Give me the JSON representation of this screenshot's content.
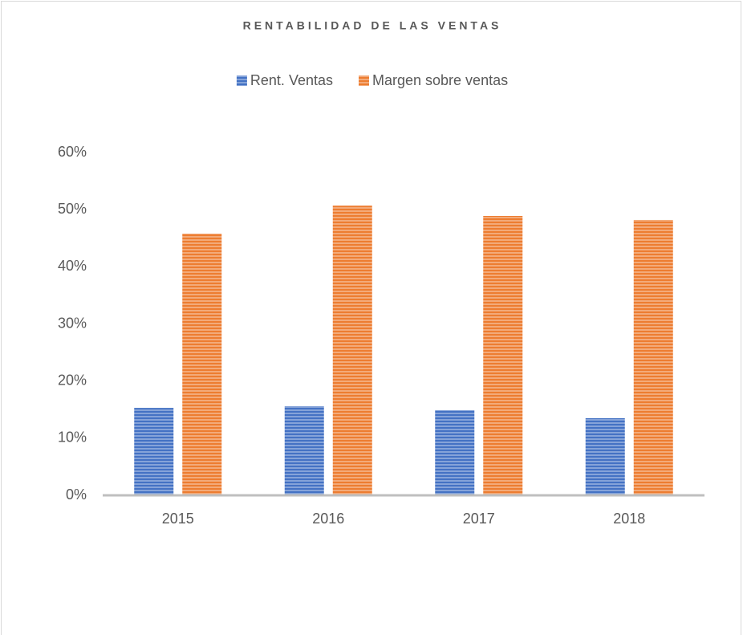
{
  "chart_data": {
    "type": "bar",
    "title": "RENTABILIDAD DE LAS VENTAS",
    "categories": [
      "2015",
      "2016",
      "2017",
      "2018"
    ],
    "series": [
      {
        "name": "Rent. Ventas",
        "color": "#4472c4",
        "values": [
          15.3,
          15.6,
          14.9,
          13.5
        ]
      },
      {
        "name": "Margen sobre ventas",
        "color": "#ed7d31",
        "values": [
          45.8,
          50.7,
          48.9,
          48.2
        ]
      }
    ],
    "ylim": [
      0,
      60
    ],
    "yticks": [
      {
        "value": 0,
        "label": "0%"
      },
      {
        "value": 10,
        "label": "10%"
      },
      {
        "value": 20,
        "label": "20%"
      },
      {
        "value": 30,
        "label": "30%"
      },
      {
        "value": 40,
        "label": "40%"
      },
      {
        "value": 50,
        "label": "50%"
      },
      {
        "value": 60,
        "label": "60%"
      }
    ],
    "grid": false,
    "legend": "top"
  }
}
